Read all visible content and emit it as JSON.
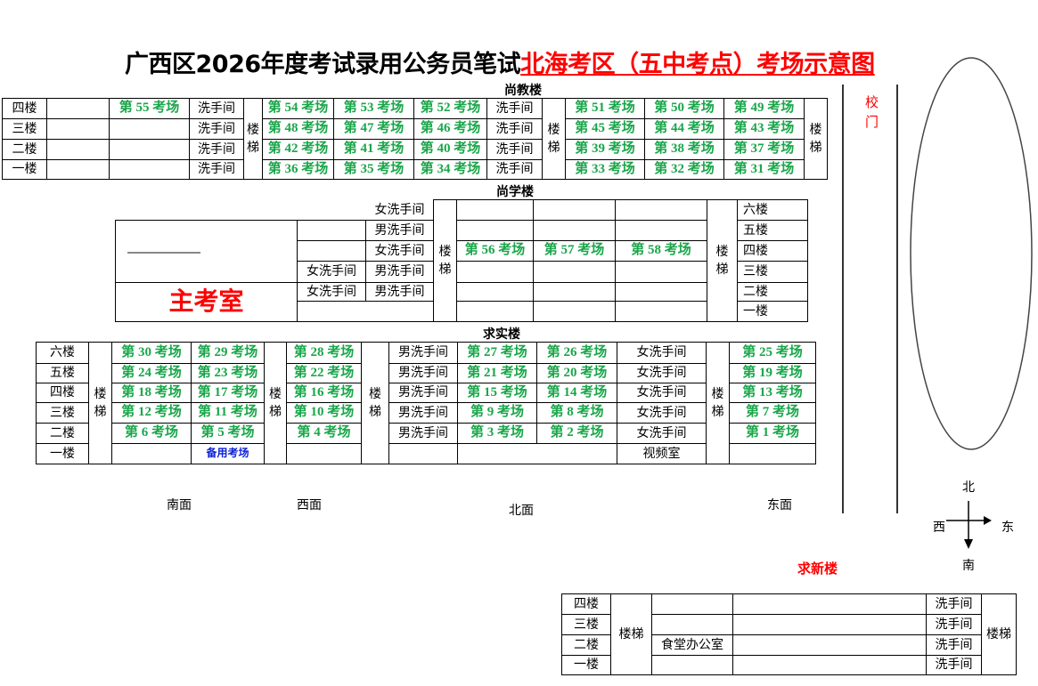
{
  "title": {
    "black": "广西区2026年度考试录用公务员笔试",
    "red": "北海考区（五中考点）考场示意图"
  },
  "colors": {
    "room": "#1aa64a",
    "highlight": "#ff0000",
    "spare": "#0a1fd6"
  },
  "stair_label": "楼梯",
  "shangjiao": {
    "name": "尚教楼",
    "rows": [
      {
        "floor": "四楼",
        "a": "",
        "b": "第 55 考场",
        "wc": "洗手间",
        "mid": [
          "第 54 考场",
          "第 53 考场",
          "第 52 考场"
        ],
        "wc2": "洗手间",
        "right": [
          "第 51 考场",
          "第 50 考场",
          "第 49 考场"
        ]
      },
      {
        "floor": "三楼",
        "a": "",
        "b": "",
        "wc": "洗手间",
        "mid": [
          "第 48 考场",
          "第 47 考场",
          "第 46 考场"
        ],
        "wc2": "洗手间",
        "right": [
          "第 45 考场",
          "第 44 考场",
          "第 43 考场"
        ]
      },
      {
        "floor": "二楼",
        "a": "",
        "b": "",
        "wc": "洗手间",
        "mid": [
          "第 42 考场",
          "第 41 考场",
          "第 40 考场"
        ],
        "wc2": "洗手间",
        "right": [
          "第 39 考场",
          "第 38 考场",
          "第 37 考场"
        ]
      },
      {
        "floor": "一楼",
        "a": "",
        "b": "",
        "wc": "洗手间",
        "mid": [
          "第 36 考场",
          "第 35 考场",
          "第 34 考场"
        ],
        "wc2": "洗手间",
        "right": [
          "第 33 考场",
          "第 32 考场",
          "第 31 考场"
        ]
      }
    ]
  },
  "shangxue": {
    "name": "尚学楼",
    "top_wc": "女洗手间",
    "head_room": "主考室",
    "left": [
      [
        "",
        "男洗手间"
      ],
      [
        "",
        "女洗手间"
      ],
      [
        "女洗手间",
        "男洗手间"
      ],
      [
        "女洗手间",
        "男洗手间"
      ]
    ],
    "rooms": [
      [
        "",
        "",
        ""
      ],
      [
        "",
        "",
        ""
      ],
      [
        "第 56 考场",
        "第 57 考场",
        "第 58 考场"
      ],
      [
        "",
        "",
        ""
      ],
      [
        "",
        "",
        ""
      ],
      [
        "",
        "",
        ""
      ]
    ],
    "floors": [
      "六楼",
      "五楼",
      "四楼",
      "三楼",
      "二楼",
      "一楼"
    ]
  },
  "qiushi": {
    "name": "求实楼",
    "rows": [
      {
        "floor": "六楼",
        "r": [
          "第 30 考场",
          "第 29 考场",
          "第 28 考场"
        ],
        "wc": "男洗手间",
        "r2": [
          "第 27 考场",
          "第 26 考场"
        ],
        "wc2": "女洗手间",
        "r3": "第 25 考场"
      },
      {
        "floor": "五楼",
        "r": [
          "第 24 考场",
          "第 23 考场",
          "第 22 考场"
        ],
        "wc": "男洗手间",
        "r2": [
          "第 21 考场",
          "第 20 考场"
        ],
        "wc2": "女洗手间",
        "r3": "第 19 考场"
      },
      {
        "floor": "四楼",
        "r": [
          "第 18 考场",
          "第 17 考场",
          "第 16 考场"
        ],
        "wc": "男洗手间",
        "r2": [
          "第 15 考场",
          "第 14 考场"
        ],
        "wc2": "女洗手间",
        "r3": "第 13 考场"
      },
      {
        "floor": "三楼",
        "r": [
          "第 12 考场",
          "第 11 考场",
          "第 10 考场"
        ],
        "wc": "男洗手间",
        "r2": [
          "第 9 考场",
          "第 8 考场"
        ],
        "wc2": "女洗手间",
        "r3": "第 7 考场"
      },
      {
        "floor": "二楼",
        "r": [
          "第 6 考场",
          "第 5 考场",
          "第 4 考场"
        ],
        "wc": "男洗手间",
        "r2": [
          "第 3 考场",
          "第 2 考场"
        ],
        "wc2": "女洗手间",
        "r3": "第 1 考场"
      }
    ],
    "ground": {
      "floor": "一楼",
      "spare": "备用考场",
      "video": "视频室"
    }
  },
  "qiuxin": {
    "name": "求新楼",
    "floors": [
      "四楼",
      "三楼",
      "二楼",
      "一楼"
    ],
    "office": [
      "",
      "",
      "食堂办公室",
      ""
    ],
    "wc": [
      "洗手间",
      "洗手间",
      "洗手间",
      "洗手间"
    ]
  },
  "sides": {
    "south": "南面",
    "west": "西面",
    "north": "北面",
    "east": "东面"
  },
  "gate": "校门",
  "compass": {
    "n": "北",
    "s": "南",
    "w": "西",
    "e": "东"
  }
}
